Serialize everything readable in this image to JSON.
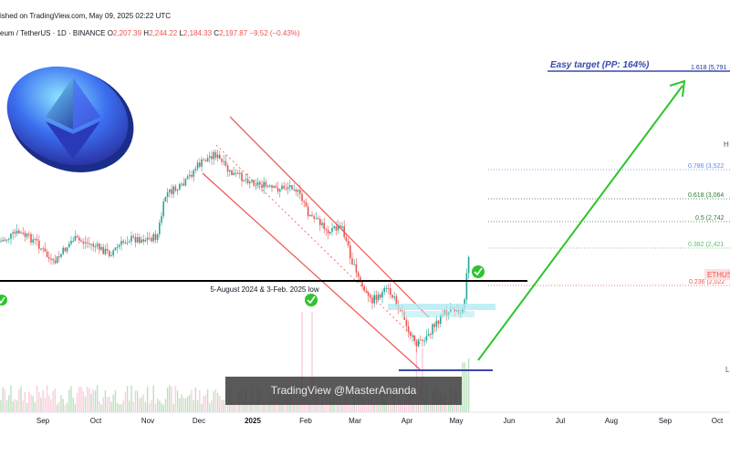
{
  "header": {
    "published": "ished on TradingView.com, May 09, 2025 02:22 UTC",
    "symbol": "eum / TetherUS · 1D · BINANCE",
    "ohlc": {
      "o_label": "O",
      "o": "2,207.39",
      "h_label": "H",
      "h": "2,244.22",
      "l_label": "L",
      "l": "2,184.33",
      "c_label": "C",
      "c": "2,197.87",
      "change": "−9.52 (−0.43%)"
    }
  },
  "annotations": {
    "target": "Easy target (PP: 164%)",
    "support": "5-August 2024 & 3-Feb. 2025 low",
    "watermark": "TradingView @MasterAnanda"
  },
  "fib_levels": [
    {
      "ratio": "1.618",
      "value": "(5,791",
      "color": "#1e3a8a"
    },
    {
      "ratio": "0.786",
      "value": "(3,522",
      "color": "#5b8def"
    },
    {
      "ratio": "0.618",
      "value": "(3,064",
      "color": "#2e7d32"
    },
    {
      "ratio": "0.5",
      "value": "(2,742",
      "color": "#2e7d32"
    },
    {
      "ratio": "0.382",
      "value": "(2,421",
      "color": "#66bb6a"
    },
    {
      "ratio": "0.236",
      "value": "(2,022",
      "color": "#ef5350"
    }
  ],
  "right_labels": {
    "symbol_tag": "ETHUS",
    "h_tag": "H",
    "l_tag": "L"
  },
  "x_axis": [
    "Sep",
    "Oct",
    "Nov",
    "Dec",
    "2025",
    "Feb",
    "Mar",
    "Apr",
    "May",
    "Jun",
    "Jul",
    "Aug",
    "Sep",
    "Oct"
  ],
  "colors": {
    "up": "#26a69a",
    "down": "#ef5350",
    "channel": "#ef5350",
    "arrow": "#2ec42e",
    "target_line": "#3949ab"
  },
  "icons": [
    "ethereum-coin-icon",
    "check-circle-icon"
  ]
}
